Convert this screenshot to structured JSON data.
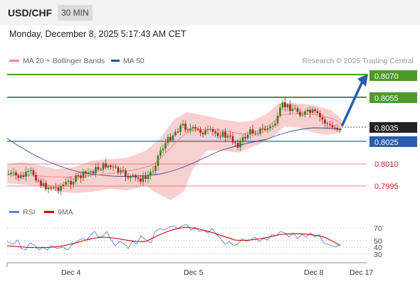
{
  "header": {
    "symbol": "USD/CHF",
    "interval": "30 MIN",
    "datetime": "Monday, December 8, 2025 5:17:43 AM CET"
  },
  "legend": {
    "ma20_bb": "MA 20 + Bollinger Bands",
    "ma50": "MA 50",
    "credit": "Research © 2025 Trading Central"
  },
  "price_levels": [
    {
      "value": "0.8070",
      "style": "green-box",
      "color": "#4c9a2a"
    },
    {
      "value": "0.8055",
      "style": "green-box",
      "color": "#4c9a2a"
    },
    {
      "value": "0.8035",
      "style": "dark-box",
      "color": "#222222"
    },
    {
      "value": "0.8025",
      "style": "blue-box",
      "color": "#2a5db0"
    },
    {
      "value": "0.8010",
      "style": "red-text",
      "color": "#cc2222"
    },
    {
      "value": "0.7995",
      "style": "red-text",
      "color": "#cc2222"
    }
  ],
  "rsi_legend": {
    "rsi": "RSI",
    "ma": "9MA"
  },
  "rsi_levels": [
    "70",
    "50",
    "40",
    "30"
  ],
  "x_labels": [
    "Dec 4",
    "Dec 5",
    "Dec 8",
    "Dec 17"
  ],
  "colors": {
    "bull_candle": "#3a7d1e",
    "bear_candle": "#b01c1c",
    "ma20": "#f28c8c",
    "ma50": "#2f4f8f",
    "bollinger_fill": "#f8c4c4",
    "rsi": "#5b7fd6",
    "rsi_ma": "#cc0000",
    "arrow": "#2a5db0"
  }
}
